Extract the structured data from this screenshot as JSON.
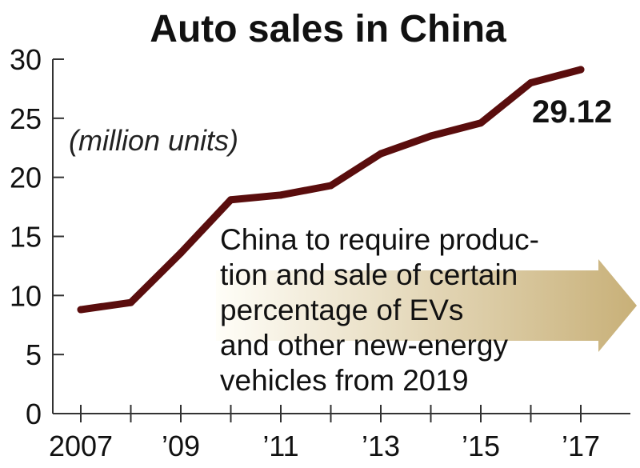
{
  "chart_data": {
    "type": "line",
    "title": "Auto sales in China",
    "ylabel": "(million units)",
    "xlabel": "",
    "x": [
      2007,
      2008,
      2009,
      2010,
      2011,
      2012,
      2013,
      2014,
      2015,
      2016,
      2017
    ],
    "series": [
      {
        "name": "Auto sales",
        "values": [
          8.8,
          9.4,
          13.6,
          18.1,
          18.5,
          19.3,
          22.0,
          23.5,
          24.6,
          28.0,
          29.12
        ]
      }
    ],
    "xticks": [
      "2007",
      "’09",
      "’11",
      "’13",
      "’15",
      "’17"
    ],
    "xtick_years": [
      2007,
      2009,
      2011,
      2013,
      2015,
      2017
    ],
    "yticks": [
      "0",
      "5",
      "10",
      "15",
      "20",
      "25",
      "30"
    ],
    "ytick_values": [
      0,
      5,
      10,
      15,
      20,
      25,
      30
    ],
    "ylim": [
      0,
      30
    ],
    "xlim": [
      2007,
      2018
    ],
    "grid": false,
    "end_label": "29.12",
    "annotation": [
      "China to require produc-",
      "tion and sale of certain",
      "percentage of EVs",
      "and other new-energy",
      "vehicles from 2019"
    ],
    "colors": {
      "line": "#5a0d0d",
      "axis": "#333333",
      "arrow_start": "#fffef8",
      "arrow_end": "#c8b078"
    }
  }
}
